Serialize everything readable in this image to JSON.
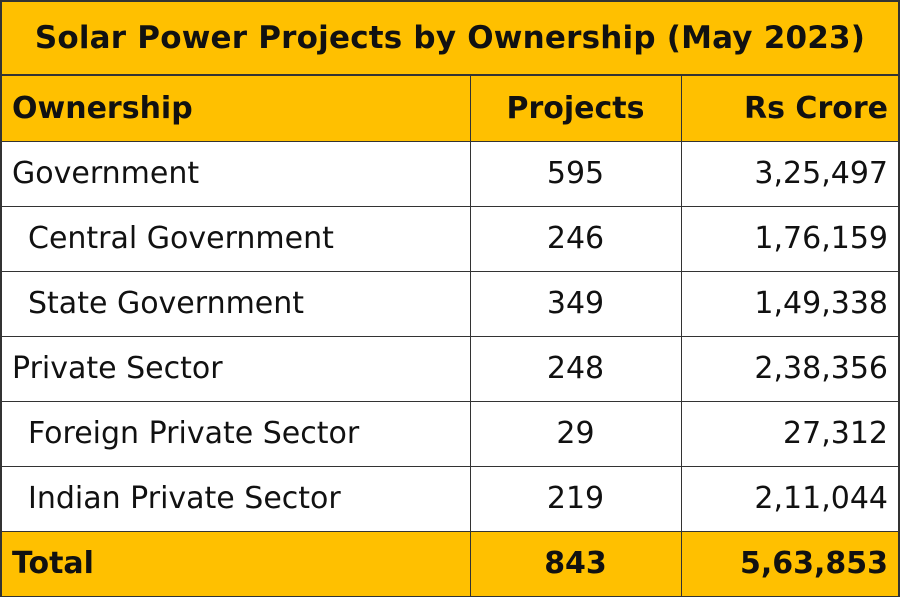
{
  "chart_data": {
    "type": "table",
    "title": "Solar Power Projects by Ownership (May 2023)",
    "columns": [
      "Ownership",
      "Projects",
      "Rs Crore"
    ],
    "rows": [
      {
        "ownership": "Government",
        "projects": "595",
        "rs_crore": "3,25,497",
        "level": 0
      },
      {
        "ownership": "Central Government",
        "projects": "246",
        "rs_crore": "1,76,159",
        "level": 1
      },
      {
        "ownership": "State Government",
        "projects": "349",
        "rs_crore": "1,49,338",
        "level": 1
      },
      {
        "ownership": "Private Sector",
        "projects": "248",
        "rs_crore": "2,38,356",
        "level": 0
      },
      {
        "ownership": "Foreign Private Sector",
        "projects": "29",
        "rs_crore": "27,312",
        "level": 1
      },
      {
        "ownership": "Indian Private Sector",
        "projects": "219",
        "rs_crore": "2,11,044",
        "level": 1
      }
    ],
    "total": {
      "ownership": "Total",
      "projects": "843",
      "rs_crore": "5,63,853"
    }
  },
  "colors": {
    "header_fill": "#FFC000",
    "border": "#333333",
    "body_fill": "#FFFFFF"
  }
}
